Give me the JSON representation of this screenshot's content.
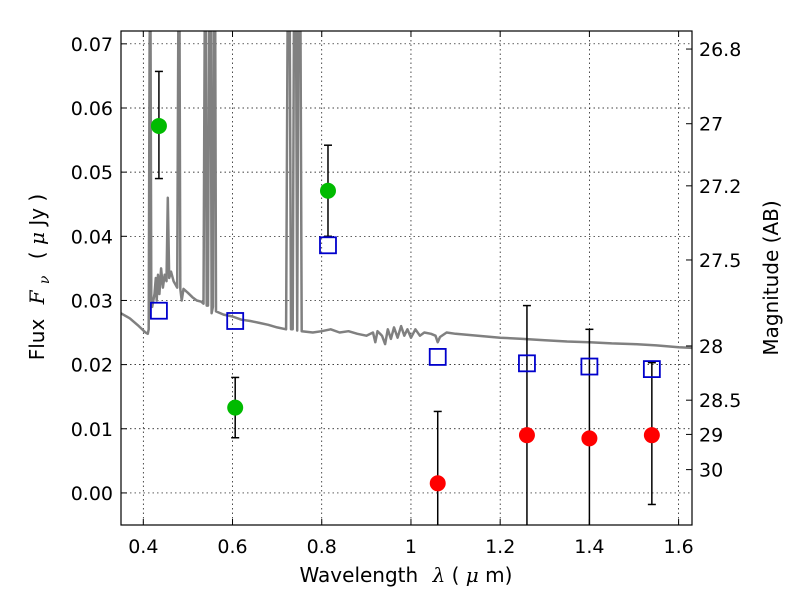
{
  "chart_data": {
    "type": "scatter",
    "title": "",
    "xlabel": {
      "prefix": "Wavelength",
      "symbol": "λ",
      "unit_open": " (",
      "unit_symbol": "μ",
      "unit_rest": "m)"
    },
    "ylabel": {
      "prefix": "Flux",
      "symbol": "F",
      "subscript": "ν",
      "unit_open": "( ",
      "unit_symbol": "μ",
      "unit_rest": "Jy )"
    },
    "ylabel_right": "Magnitude (AB)",
    "xlim": [
      0.35,
      1.63
    ],
    "ylim": [
      -0.005,
      0.072
    ],
    "grid": true,
    "x_ticks": [
      {
        "value": 0.4,
        "label": "0.4"
      },
      {
        "value": 0.6,
        "label": "0.6"
      },
      {
        "value": 0.8,
        "label": "0.8"
      },
      {
        "value": 1.0,
        "label": "1"
      },
      {
        "value": 1.2,
        "label": "1.2"
      },
      {
        "value": 1.4,
        "label": "1.4"
      },
      {
        "value": 1.6,
        "label": "1.6"
      }
    ],
    "y_ticks": [
      {
        "value": 0.0,
        "label": "0.00"
      },
      {
        "value": 0.01,
        "label": "0.01"
      },
      {
        "value": 0.02,
        "label": "0.02"
      },
      {
        "value": 0.03,
        "label": "0.03"
      },
      {
        "value": 0.04,
        "label": "0.04"
      },
      {
        "value": 0.05,
        "label": "0.05"
      },
      {
        "value": 0.06,
        "label": "0.06"
      },
      {
        "value": 0.07,
        "label": "0.07"
      }
    ],
    "right_ticks": [
      {
        "value": 26.8,
        "label": "26.8"
      },
      {
        "value": 27.0,
        "label": "27"
      },
      {
        "value": 27.2,
        "label": "27.2"
      },
      {
        "value": 27.5,
        "label": "27.5"
      },
      {
        "value": 28.0,
        "label": "28"
      },
      {
        "value": 28.5,
        "label": "28.5"
      },
      {
        "value": 29.0,
        "label": "29"
      },
      {
        "value": 30.0,
        "label": "30"
      }
    ],
    "series": [
      {
        "marker": "circle",
        "color": "#00bb00",
        "points": [
          {
            "x": 0.435,
            "y": 0.0572,
            "lo": 0.049,
            "hi": 0.0657
          },
          {
            "x": 0.606,
            "y": 0.0133,
            "lo": 0.0086,
            "hi": 0.018
          },
          {
            "x": 0.814,
            "y": 0.0471,
            "lo": 0.04,
            "hi": 0.0542
          }
        ]
      },
      {
        "marker": "circle",
        "color": "#ff0000",
        "points": [
          {
            "x": 1.06,
            "y": 0.0015,
            "lo": -0.0053,
            "hi": 0.0127
          },
          {
            "x": 1.26,
            "y": 0.009,
            "lo": -0.0053,
            "hi": 0.0292
          },
          {
            "x": 1.4,
            "y": 0.0085,
            "lo": -0.0053,
            "hi": 0.0255
          },
          {
            "x": 1.54,
            "y": 0.009,
            "lo": -0.0018,
            "hi": 0.0203
          }
        ]
      },
      {
        "marker": "square-open",
        "color": "#0000cc",
        "points": [
          {
            "x": 0.435,
            "y": 0.0284
          },
          {
            "x": 0.606,
            "y": 0.0268
          },
          {
            "x": 0.814,
            "y": 0.0386
          },
          {
            "x": 1.06,
            "y": 0.0212
          },
          {
            "x": 1.26,
            "y": 0.0202
          },
          {
            "x": 1.4,
            "y": 0.0197
          },
          {
            "x": 1.54,
            "y": 0.0193
          }
        ]
      }
    ],
    "model_spectrum": {
      "color": "#808080",
      "points": [
        [
          0.35,
          0.028
        ],
        [
          0.37,
          0.0272
        ],
        [
          0.39,
          0.026
        ],
        [
          0.405,
          0.025
        ],
        [
          0.41,
          0.0248
        ],
        [
          0.412,
          0.0255
        ],
        [
          0.414,
          0.07
        ],
        [
          0.416,
          0.08
        ],
        [
          0.418,
          0.03
        ],
        [
          0.42,
          0.029
        ],
        [
          0.425,
          0.031
        ],
        [
          0.428,
          0.0335
        ],
        [
          0.43,
          0.03
        ],
        [
          0.433,
          0.034
        ],
        [
          0.436,
          0.031
        ],
        [
          0.44,
          0.035
        ],
        [
          0.444,
          0.032
        ],
        [
          0.448,
          0.034
        ],
        [
          0.452,
          0.033
        ],
        [
          0.455,
          0.046
        ],
        [
          0.458,
          0.0335
        ],
        [
          0.462,
          0.0345
        ],
        [
          0.468,
          0.033
        ],
        [
          0.472,
          0.0325
        ],
        [
          0.476,
          0.032
        ],
        [
          0.479,
          0.08
        ],
        [
          0.481,
          0.08
        ],
        [
          0.483,
          0.0318
        ],
        [
          0.486,
          0.03
        ],
        [
          0.49,
          0.0318
        ],
        [
          0.5,
          0.0312
        ],
        [
          0.51,
          0.0305
        ],
        [
          0.52,
          0.03
        ],
        [
          0.53,
          0.0298
        ],
        [
          0.535,
          0.0295
        ],
        [
          0.538,
          0.08
        ],
        [
          0.54,
          0.08
        ],
        [
          0.542,
          0.0292
        ],
        [
          0.545,
          0.0292
        ],
        [
          0.548,
          0.08
        ],
        [
          0.551,
          0.08
        ],
        [
          0.553,
          0.028
        ],
        [
          0.556,
          0.029
        ],
        [
          0.558,
          0.08
        ],
        [
          0.561,
          0.08
        ],
        [
          0.563,
          0.0283
        ],
        [
          0.58,
          0.0278
        ],
        [
          0.6,
          0.0275
        ],
        [
          0.62,
          0.027
        ],
        [
          0.64,
          0.0268
        ],
        [
          0.66,
          0.0265
        ],
        [
          0.68,
          0.0262
        ],
        [
          0.7,
          0.0258
        ],
        [
          0.72,
          0.0255
        ],
        [
          0.724,
          0.08
        ],
        [
          0.728,
          0.08
        ],
        [
          0.731,
          0.0255
        ],
        [
          0.735,
          0.0255
        ],
        [
          0.738,
          0.08
        ],
        [
          0.742,
          0.08
        ],
        [
          0.745,
          0.0253
        ],
        [
          0.748,
          0.08
        ],
        [
          0.752,
          0.08
        ],
        [
          0.755,
          0.0252
        ],
        [
          0.78,
          0.025
        ],
        [
          0.8,
          0.0252
        ],
        [
          0.82,
          0.0255
        ],
        [
          0.84,
          0.025
        ],
        [
          0.86,
          0.0252
        ],
        [
          0.88,
          0.0248
        ],
        [
          0.9,
          0.0245
        ],
        [
          0.915,
          0.025
        ],
        [
          0.92,
          0.0235
        ],
        [
          0.925,
          0.0252
        ],
        [
          0.935,
          0.0245
        ],
        [
          0.942,
          0.0232
        ],
        [
          0.948,
          0.0255
        ],
        [
          0.955,
          0.024
        ],
        [
          0.962,
          0.0258
        ],
        [
          0.97,
          0.0242
        ],
        [
          0.978,
          0.026
        ],
        [
          0.985,
          0.0245
        ],
        [
          0.992,
          0.0255
        ],
        [
          1.0,
          0.0242
        ],
        [
          1.01,
          0.0255
        ],
        [
          1.02,
          0.0245
        ],
        [
          1.03,
          0.025
        ],
        [
          1.045,
          0.0248
        ],
        [
          1.055,
          0.0245
        ],
        [
          1.06,
          0.0235
        ],
        [
          1.065,
          0.0243
        ],
        [
          1.08,
          0.025
        ],
        [
          1.1,
          0.0248
        ],
        [
          1.15,
          0.0245
        ],
        [
          1.2,
          0.0242
        ],
        [
          1.25,
          0.024
        ],
        [
          1.3,
          0.0238
        ],
        [
          1.35,
          0.0236
        ],
        [
          1.4,
          0.0235
        ],
        [
          1.45,
          0.0233
        ],
        [
          1.5,
          0.0232
        ],
        [
          1.55,
          0.023
        ],
        [
          1.6,
          0.0227
        ],
        [
          1.63,
          0.0226
        ]
      ]
    }
  }
}
